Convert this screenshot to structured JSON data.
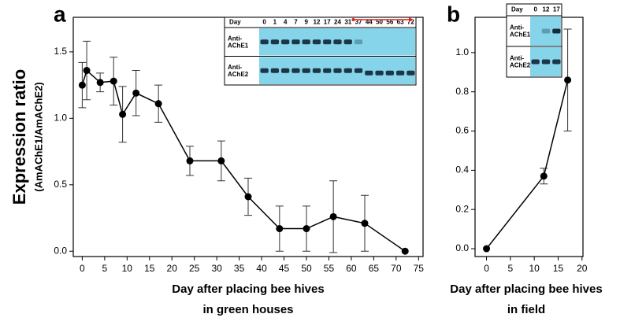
{
  "chart_data": [
    {
      "type": "line",
      "panel_label": "a",
      "ylabel": "Expression ratio",
      "ylabel_sub": "(AmAChE1/AmAChE2)",
      "xlabel": [
        "Day after placing bee hives",
        "in green houses"
      ],
      "x": [
        0,
        1,
        4,
        7,
        9,
        12,
        17,
        24,
        31,
        37,
        44,
        50,
        56,
        63,
        72
      ],
      "series": [
        {
          "color": "#000000",
          "values": [
            1.25,
            1.36,
            1.27,
            1.28,
            1.03,
            1.19,
            1.11,
            0.68,
            0.68,
            0.41,
            0.17,
            0.17,
            0.26,
            0.21,
            0.0
          ],
          "errors": [
            0.17,
            0.22,
            0.07,
            0.18,
            0.21,
            0.17,
            0.14,
            0.11,
            0.15,
            0.14,
            0.17,
            0.17,
            0.27,
            0.21,
            0.0
          ]
        }
      ],
      "xlim": [
        -2,
        76
      ],
      "ylim": [
        -0.04,
        1.76
      ],
      "xticks": [
        0,
        5,
        10,
        15,
        20,
        25,
        30,
        35,
        40,
        45,
        50,
        55,
        60,
        65,
        70,
        75
      ],
      "yticks": [
        {
          "value": 0,
          "label": "0.0"
        },
        0.5,
        {
          "value": 1,
          "label": "1.0"
        },
        1.5
      ],
      "inset": {
        "header": "Day",
        "days": [
          "0",
          "1",
          "4",
          "7",
          "9",
          "12",
          "17",
          "24",
          "31",
          "37",
          "44",
          "50",
          "56",
          "63",
          "72"
        ],
        "rows": [
          "Anti-AChE1",
          "Anti-AChE2"
        ]
      }
    },
    {
      "type": "line",
      "panel_label": "b",
      "xlabel": [
        "Day after placing bee hives",
        "in field"
      ],
      "x": [
        0,
        12,
        17
      ],
      "series": [
        {
          "color": "#000000",
          "values": [
            0.0,
            0.37,
            0.86
          ],
          "errors": [
            0.0,
            0.04,
            0.26
          ]
        }
      ],
      "xlim": [
        -2.4,
        20.2
      ],
      "ylim": [
        -0.04,
        1.18
      ],
      "xticks": [
        0,
        5,
        10,
        15,
        20
      ],
      "yticks": [
        {
          "value": 0,
          "label": "0.0"
        },
        0.2,
        0.4,
        0.6,
        0.8,
        {
          "value": 1,
          "label": "1.0"
        }
      ],
      "inset": {
        "header": "Day",
        "days": [
          "0",
          "12",
          "17"
        ],
        "rows": [
          "Anti-AChE1",
          "Anti-AChE2"
        ]
      }
    }
  ]
}
